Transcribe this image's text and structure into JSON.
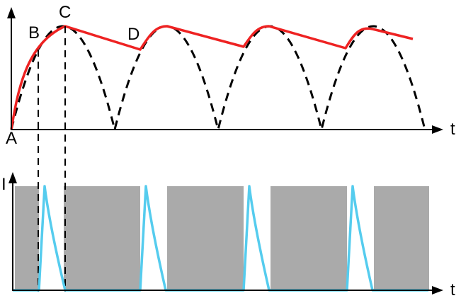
{
  "labels": {
    "point_a": "A",
    "point_b": "B",
    "point_c": "C",
    "point_d": "D",
    "top_axis_t": "t",
    "bottom_axis_i": "I",
    "bottom_axis_t": "t"
  },
  "colors": {
    "envelope": "#ee2222",
    "rectified": "#000000",
    "current_pulse": "#55ccee",
    "block_fill": "#aaaaaa",
    "axes": "#000000"
  }
}
